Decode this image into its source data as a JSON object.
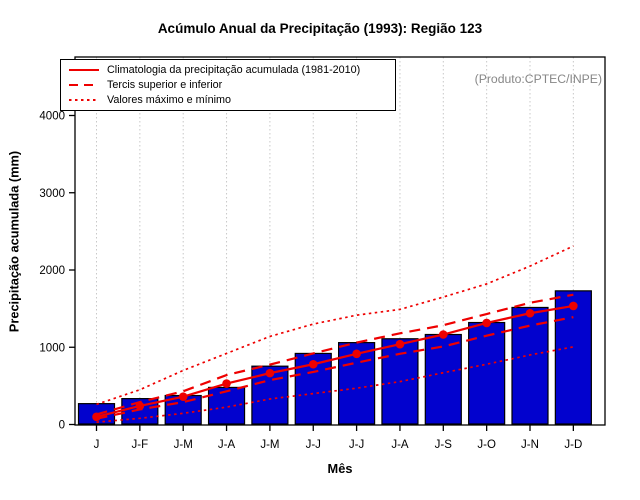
{
  "title": "Acúmulo Anual da Precipitação (1993): Região 123",
  "watermark": "(Produto:CPTEC/INPE)",
  "legend": {
    "items": [
      {
        "label": "Climatologia da precipitação acumulada (1981-2010)",
        "style": "solid"
      },
      {
        "label": "Tercis superior e inferior",
        "style": "dashed"
      },
      {
        "label": "Valores máximo e mínimo",
        "style": "dotted"
      }
    ]
  },
  "colors": {
    "bar": "#0202CE",
    "bar_border": "#000000",
    "line": "#EE0000",
    "grid": "#C8C8C8",
    "watermark_text": "#878787"
  },
  "chart_data": {
    "type": "bar",
    "title": "Acúmulo Anual da Precipitação (1993): Região 123",
    "xlabel": "Mês",
    "ylabel": "Precipitação acumulada (mm)",
    "ylim": [
      0,
      4000
    ],
    "yticks": [
      0,
      1000,
      2000,
      3000,
      4000
    ],
    "grid": "vertical-dotted",
    "legend_position": "top-left",
    "categories": [
      "J",
      "J-F",
      "J-M",
      "J-A",
      "J-M",
      "J-J",
      "J-J",
      "J-A",
      "J-S",
      "J-O",
      "J-N",
      "J-D"
    ],
    "bars_observed_1993": [
      270,
      335,
      375,
      480,
      755,
      920,
      1060,
      1110,
      1165,
      1320,
      1515,
      1730
    ],
    "series": [
      {
        "name": "climatology_1981_2010",
        "style": "solid",
        "marker": true,
        "values": [
          100,
          240,
          360,
          530,
          665,
          780,
          915,
          1040,
          1165,
          1315,
          1440,
          1535
        ]
      },
      {
        "name": "tercile_upper",
        "style": "dashed",
        "marker": false,
        "values": [
          130,
          290,
          430,
          640,
          775,
          920,
          1060,
          1180,
          1285,
          1430,
          1575,
          1680
        ]
      },
      {
        "name": "tercile_lower",
        "style": "dashed",
        "marker": false,
        "values": [
          75,
          195,
          290,
          430,
          575,
          680,
          800,
          915,
          1010,
          1150,
          1280,
          1390
        ]
      },
      {
        "name": "maximum",
        "style": "dotted",
        "marker": false,
        "values": [
          260,
          450,
          700,
          920,
          1140,
          1300,
          1415,
          1490,
          1650,
          1820,
          2050,
          2310
        ]
      },
      {
        "name": "minimum",
        "style": "dotted",
        "marker": false,
        "values": [
          30,
          80,
          145,
          225,
          330,
          400,
          470,
          555,
          670,
          780,
          900,
          1005
        ]
      }
    ]
  }
}
